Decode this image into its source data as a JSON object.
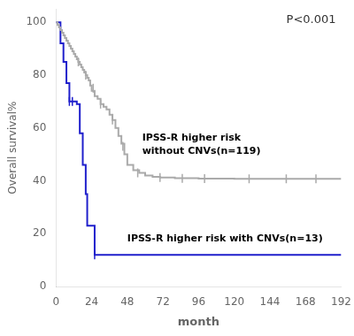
{
  "chart_data": {
    "type": "line",
    "xlabel": "month",
    "ylabel": "Overall survival%",
    "xlim": [
      0,
      192
    ],
    "ylim": [
      0,
      105
    ],
    "xticks": [
      0,
      24,
      48,
      72,
      96,
      120,
      144,
      168,
      192
    ],
    "yticks": [
      0,
      20,
      40,
      60,
      80,
      100
    ],
    "grid": false,
    "series": [
      {
        "color": "#aaaaaa",
        "line_style": "step",
        "x": [
          0,
          1,
          2,
          3,
          4,
          5,
          6,
          7,
          8,
          9,
          10,
          11,
          12,
          13,
          14,
          15,
          16,
          17,
          18,
          19,
          20,
          21,
          22,
          23,
          24,
          26,
          28,
          30,
          32,
          34,
          36,
          38,
          40,
          42,
          44,
          46,
          48,
          52,
          56,
          60,
          65,
          70,
          80,
          96,
          120,
          144,
          168,
          192
        ],
        "values": [
          100,
          99,
          98,
          97,
          96,
          95,
          94,
          93,
          92,
          91,
          90,
          89,
          88,
          87,
          86,
          85,
          84,
          83,
          82,
          81,
          80,
          79,
          78,
          76,
          74,
          72,
          71,
          69,
          68,
          67,
          65,
          63,
          60,
          57,
          54,
          50,
          46,
          44,
          43,
          42,
          41.5,
          41.2,
          41.0,
          40.8,
          40.7,
          40.7,
          40.7,
          40.7
        ],
        "censor_x": [
          15,
          20,
          25,
          30,
          38,
          45,
          55,
          70,
          85,
          100,
          130,
          155,
          175
        ],
        "censor_y": [
          85,
          80,
          75,
          69,
          63,
          53,
          43,
          41.2,
          40.9,
          40.8,
          40.7,
          40.7,
          40.7
        ]
      },
      {
        "color": "#1f1fcc",
        "line_style": "step",
        "x": [
          0,
          3,
          5,
          7,
          9,
          11,
          12,
          14,
          16,
          17,
          18,
          19,
          20,
          21,
          22,
          24,
          26,
          28,
          192
        ],
        "values": [
          100,
          92,
          85,
          77,
          70,
          70,
          70,
          69,
          58,
          58,
          46,
          46,
          35,
          23,
          23,
          23,
          12,
          12,
          12
        ],
        "censor_x": [
          9,
          11,
          26
        ],
        "censor_y": [
          70,
          70,
          12
        ]
      }
    ],
    "annotations": [
      {
        "text": "P<0.001"
      },
      {
        "text": "IPSS-R higher risk\nwithout CNVs(n=119)",
        "x": 58,
        "y": 58
      },
      {
        "text": "IPSS-R higher risk with CNVs(n=13)",
        "x": 48,
        "y": 20
      }
    ]
  }
}
